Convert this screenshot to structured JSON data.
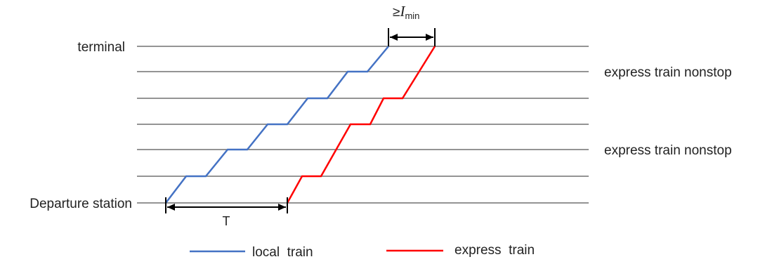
{
  "labels": {
    "terminal": "terminal",
    "departure": "Departure station",
    "nonstop_upper": "express train nonstop",
    "nonstop_lower": "express train nonstop",
    "headway": "T",
    "min_interval_prefix": "≥",
    "min_interval_symbol": "I",
    "min_interval_subscript": "min"
  },
  "legend": {
    "local": "local  train",
    "express": "express  train"
  },
  "colors": {
    "local": "#4472C4",
    "express": "#FF0000",
    "station_line": "#555555"
  }
}
